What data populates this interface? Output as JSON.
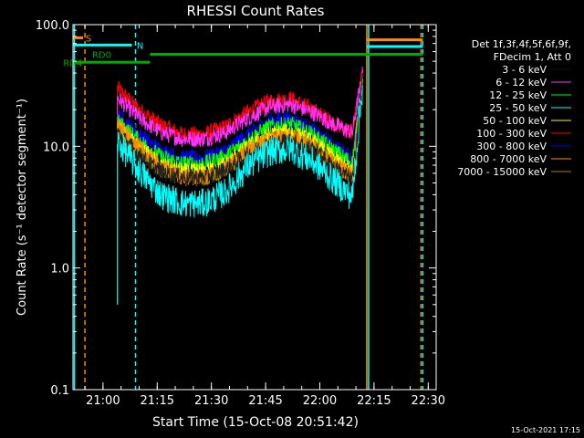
{
  "chart_data": {
    "type": "line",
    "title": "RHESSI Count Rates",
    "xlabel": "Start Time (15-Oct-08 20:51:42)",
    "ylabel": "Count Rate (s⁻¹ detector segment⁻¹)",
    "ylog": true,
    "xlim": [
      "20:51:42",
      "22:32:12"
    ],
    "ylim": [
      0.1,
      100.0
    ],
    "x_ticks": [
      "21:00",
      "21:15",
      "21:30",
      "21:45",
      "22:00",
      "22:15",
      "22:30"
    ],
    "y_ticks": [
      "0.1",
      "1.0",
      "10.0",
      "100.0"
    ],
    "legend_header": [
      "Det 1f,3f,4f,5f,6f,9f,",
      "FDecim 1, Att 0"
    ],
    "legend_placement": "right of plot",
    "timestamp": "15-Oct-2021 17:15",
    "x": [
      "21:04",
      "21:10",
      "21:16",
      "21:22",
      "21:28",
      "21:34",
      "21:40",
      "21:46",
      "21:52",
      "21:58",
      "22:04",
      "22:09",
      "22:12"
    ],
    "series": [
      {
        "name": "3 - 6 keV",
        "color": "#000000",
        "values": [
          13,
          8.5,
          6.2,
          5.6,
          5.6,
          6.5,
          8.5,
          10.6,
          11.2,
          9.5,
          6.8,
          5.3,
          40
        ]
      },
      {
        "name": "6 - 12 keV",
        "color": "#ff33ff",
        "values": [
          25,
          17,
          13,
          11.5,
          11.5,
          13,
          17,
          21,
          22,
          19,
          15,
          13,
          42
        ]
      },
      {
        "name": "12 - 25 keV",
        "color": "#00ff00",
        "values": [
          16,
          11.2,
          8.2,
          7.2,
          7.2,
          8.3,
          11.2,
          14.5,
          15.2,
          12.5,
          9.2,
          7.3,
          40
        ]
      },
      {
        "name": "25 - 50 keV",
        "color": "#00ffff",
        "values": [
          11,
          6.3,
          4.0,
          3.4,
          3.4,
          4.2,
          6.8,
          9.0,
          9.5,
          7.5,
          5.2,
          3.8,
          36
        ]
      },
      {
        "name": "50 - 100 keV",
        "color": "#ffff00",
        "values": [
          14,
          9.8,
          7.0,
          6.2,
          6.2,
          7.2,
          9.8,
          12.5,
          13.2,
          11,
          8,
          6.3,
          40
        ]
      },
      {
        "name": "100 - 300 keV",
        "color": "#ff0000",
        "values": [
          30,
          20,
          15,
          12.5,
          12.5,
          14.5,
          19,
          23.5,
          24.5,
          20,
          15.5,
          13,
          45
        ]
      },
      {
        "name": "300 - 800 keV",
        "color": "#0000ff",
        "values": [
          18,
          12.5,
          9.2,
          8.0,
          8.0,
          9.2,
          12.5,
          16,
          16.8,
          13.5,
          10,
          8,
          42
        ]
      },
      {
        "name": "800 - 7000 keV",
        "color": "#ff8c00",
        "values": [
          15,
          9.8,
          6.8,
          5.6,
          5.6,
          6.6,
          9.3,
          11.8,
          12.3,
          10.2,
          7.2,
          5.8,
          40
        ]
      },
      {
        "name": "7000 - 15000 keV",
        "color": "#a08000",
        "values": [
          13.5,
          9.0,
          6.4,
          5.5,
          5.5,
          6.4,
          9.0,
          11.4,
          12.0,
          10,
          7.1,
          5.6,
          40
        ]
      }
    ],
    "attenuator_labels": [
      {
        "text": "S",
        "color": "#ff8c00"
      },
      {
        "text": "N",
        "color": "#00ffff"
      },
      {
        "text": "RD0",
        "color": "#00aa00"
      },
      {
        "text": "RD4",
        "color": "#00aa00"
      }
    ]
  }
}
